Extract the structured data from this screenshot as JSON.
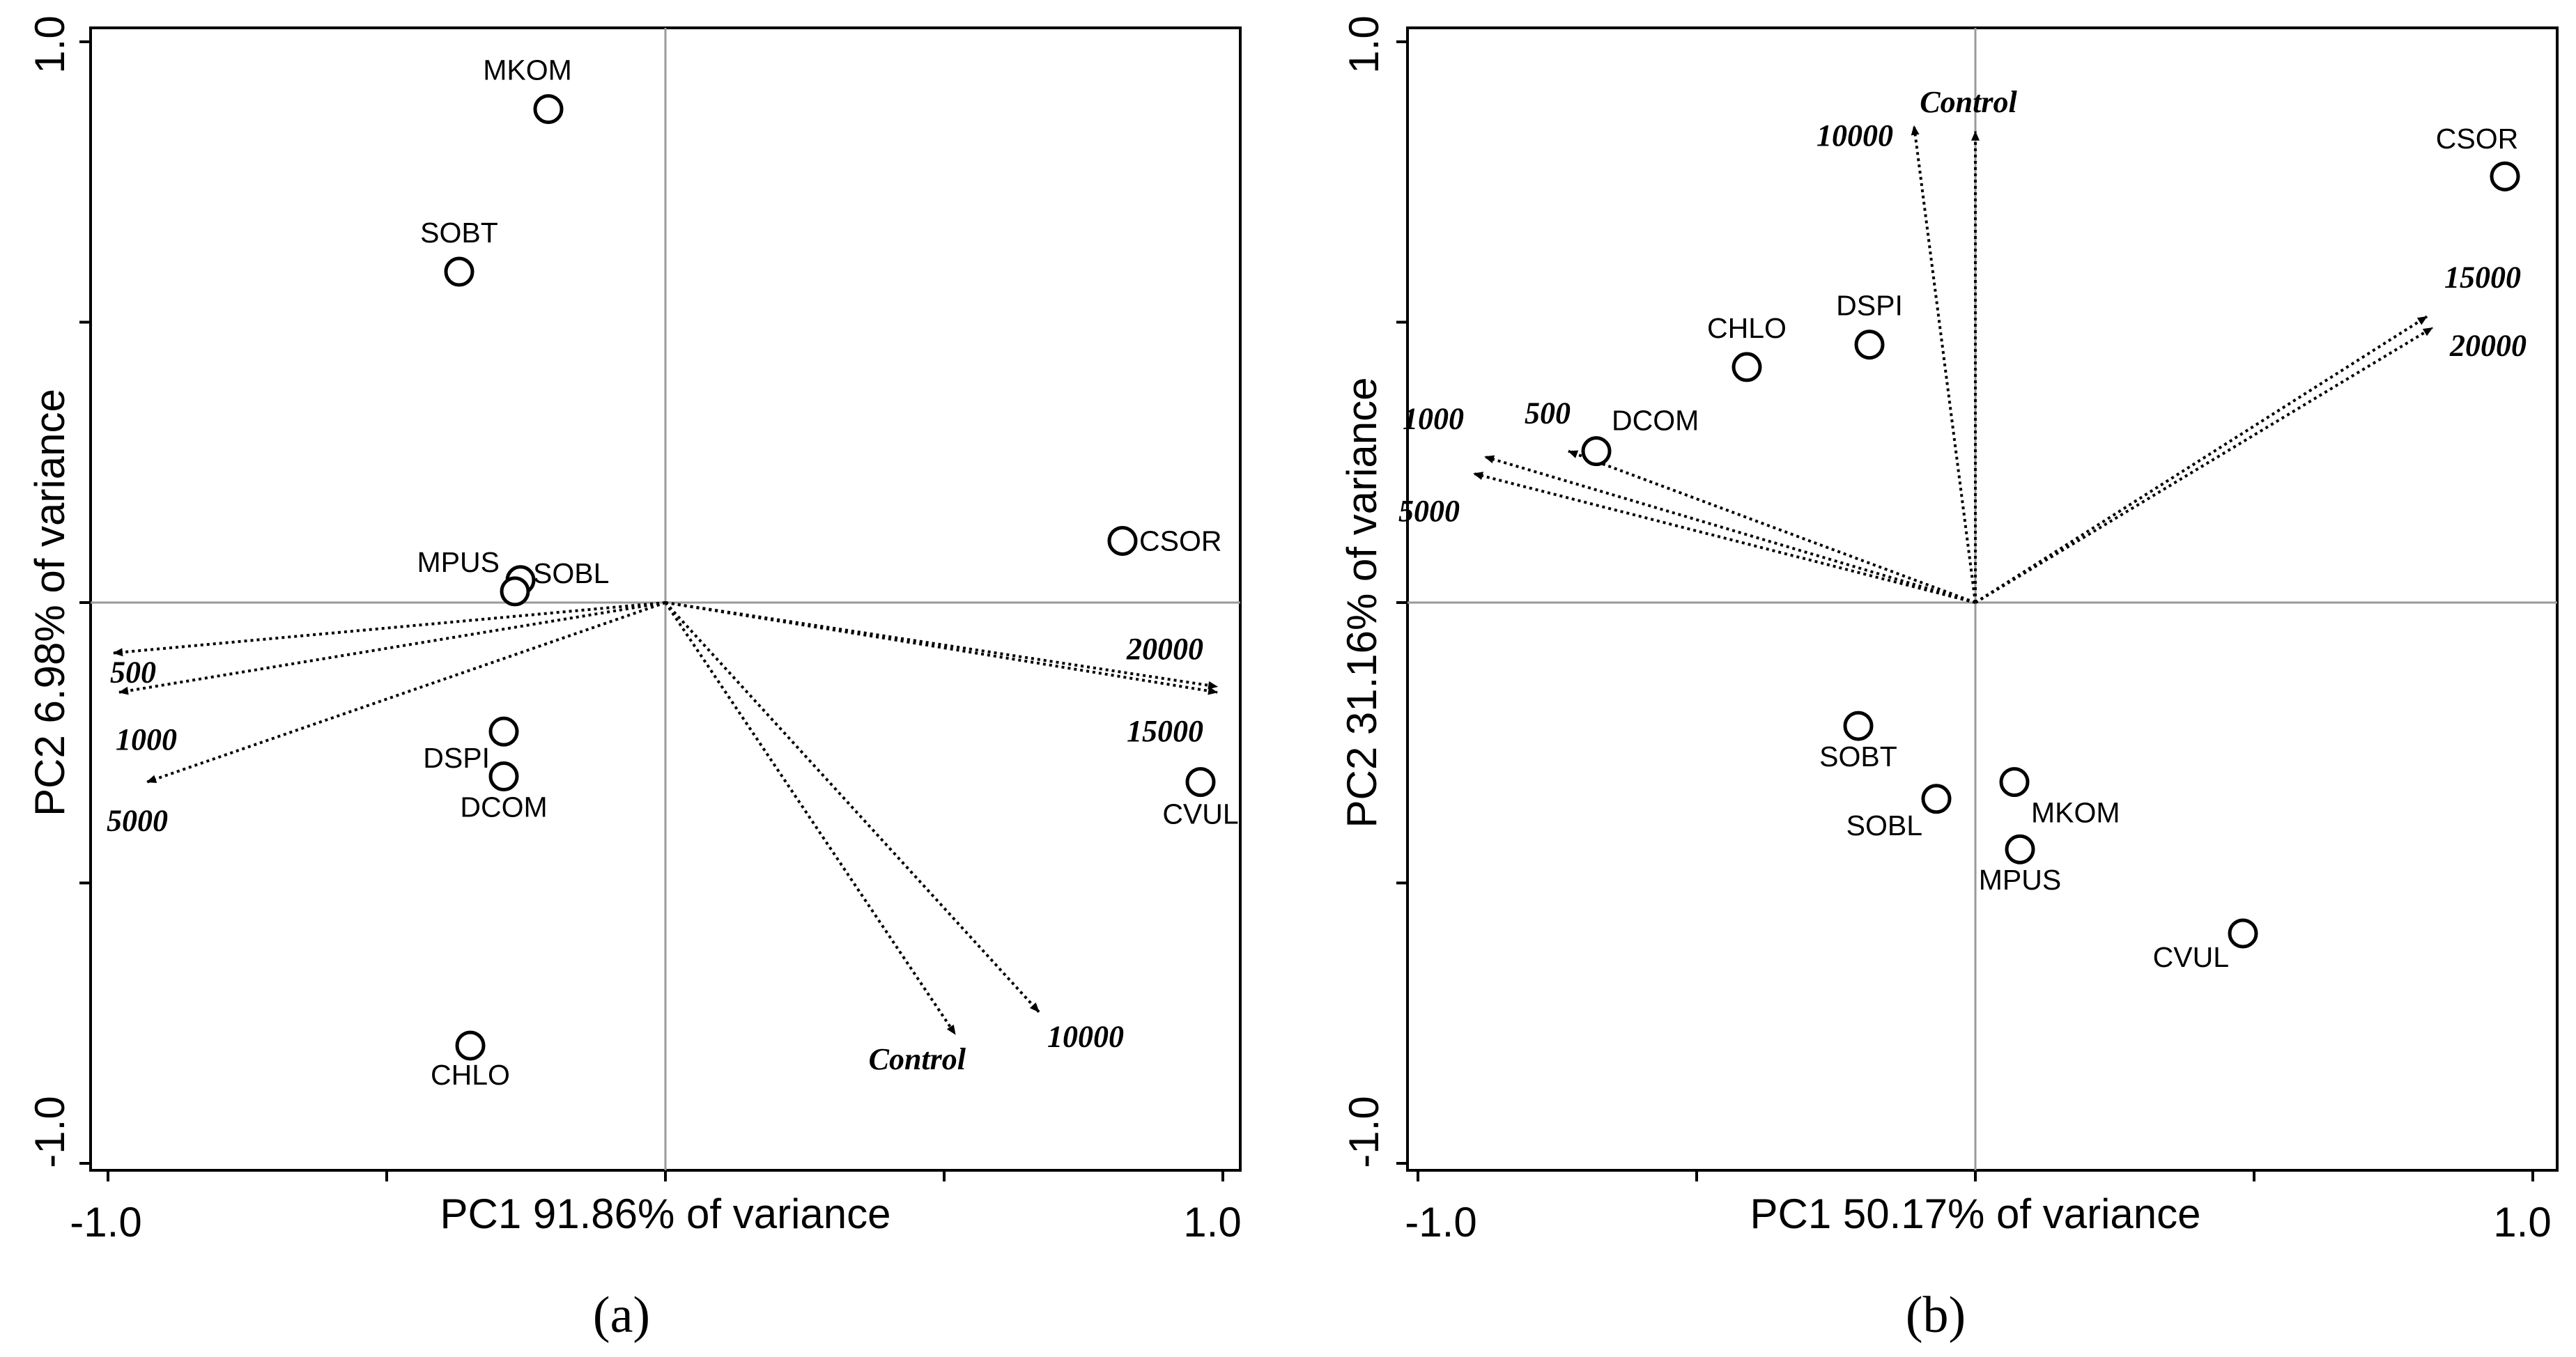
{
  "chart_data": [
    {
      "type": "scatter",
      "title": "(a)",
      "xlabel": "PC1 91.86% of variance",
      "ylabel": "PC2 6.98% of variance",
      "xlim": [
        -1.0,
        1.0
      ],
      "ylim": [
        -1.0,
        1.0
      ],
      "xtick_labels": [
        "-1.0",
        "1.0"
      ],
      "ytick_labels": [
        "1.0",
        "-1.0"
      ],
      "series": [
        {
          "name": "species",
          "points": [
            {
              "label": "MKOM",
              "x": -0.21,
              "y": 0.88
            },
            {
              "label": "SOBT",
              "x": -0.37,
              "y": 0.59
            },
            {
              "label": "MPUS",
              "x": -0.26,
              "y": 0.04
            },
            {
              "label": "SOBL",
              "x": -0.27,
              "y": 0.02
            },
            {
              "label": "DSPI",
              "x": -0.29,
              "y": -0.23
            },
            {
              "label": "DCOM",
              "x": -0.29,
              "y": -0.31
            },
            {
              "label": "CHLO",
              "x": -0.35,
              "y": -0.79
            },
            {
              "label": "CSOR",
              "x": 0.82,
              "y": 0.11
            },
            {
              "label": "CVUL",
              "x": 0.96,
              "y": -0.32
            }
          ]
        },
        {
          "name": "concentrations",
          "vectors": [
            {
              "label": "500",
              "x": -0.99,
              "y": -0.09
            },
            {
              "label": "1000",
              "x": -0.98,
              "y": -0.16
            },
            {
              "label": "5000",
              "x": -0.93,
              "y": -0.32
            },
            {
              "label": "20000",
              "x": 0.99,
              "y": -0.15
            },
            {
              "label": "15000",
              "x": 0.99,
              "y": -0.16
            },
            {
              "label": "Control",
              "x": 0.52,
              "y": -0.77
            },
            {
              "label": "10000",
              "x": 0.67,
              "y": -0.73
            }
          ]
        }
      ]
    },
    {
      "type": "scatter",
      "title": "(b)",
      "xlabel": "PC1 50.17% of variance",
      "ylabel": "PC2 31.16% of variance",
      "xlim": [
        -1.0,
        1.0
      ],
      "ylim": [
        -1.0,
        1.0
      ],
      "xtick_labels": [
        "-1.0",
        "1.0"
      ],
      "ytick_labels": [
        "1.0",
        "-1.0"
      ],
      "series": [
        {
          "name": "species",
          "points": [
            {
              "label": "CSOR",
              "x": 0.95,
              "y": 0.76
            },
            {
              "label": "DSPI",
              "x": -0.19,
              "y": 0.46
            },
            {
              "label": "CHLO",
              "x": -0.41,
              "y": 0.42
            },
            {
              "label": "DCOM",
              "x": -0.68,
              "y": 0.27
            },
            {
              "label": "SOBT",
              "x": -0.21,
              "y": -0.22
            },
            {
              "label": "MKOM",
              "x": 0.07,
              "y": -0.32
            },
            {
              "label": "SOBL",
              "x": -0.07,
              "y": -0.35
            },
            {
              "label": "MPUS",
              "x": 0.08,
              "y": -0.44
            },
            {
              "label": "CVUL",
              "x": 0.48,
              "y": -0.59
            }
          ]
        },
        {
          "name": "concentrations",
          "vectors": [
            {
              "label": "Control",
              "x": 0.0,
              "y": 0.84
            },
            {
              "label": "10000",
              "x": -0.11,
              "y": 0.85
            },
            {
              "label": "15000",
              "x": 0.81,
              "y": 0.51
            },
            {
              "label": "20000",
              "x": 0.82,
              "y": 0.49
            },
            {
              "label": "1000",
              "x": -0.88,
              "y": 0.26
            },
            {
              "label": "500",
              "x": -0.73,
              "y": 0.27
            },
            {
              "label": "5000",
              "x": -0.9,
              "y": 0.23
            }
          ]
        }
      ]
    }
  ]
}
